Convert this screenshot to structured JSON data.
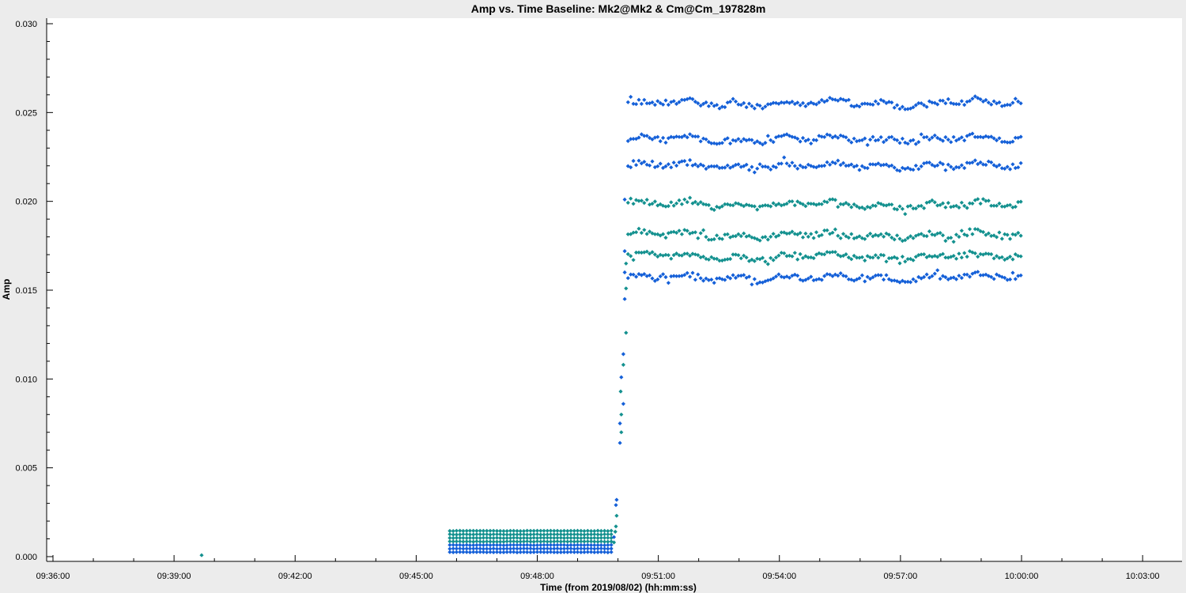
{
  "chart_data": {
    "type": "scatter",
    "title": "Amp vs. Time Baseline: Mk2@Mk2 & Cm@Cm_197828m",
    "xlabel": "Time (from 2019/08/02) (hh:mm:ss)",
    "ylabel": "Amp",
    "x_ticks": [
      "09:36:00",
      "09:39:00",
      "09:42:00",
      "09:45:00",
      "09:48:00",
      "09:51:00",
      "09:54:00",
      "09:57:00",
      "10:00:00",
      "10:03:00"
    ],
    "x_tick_seconds": [
      34560,
      34740,
      34920,
      35100,
      35280,
      35460,
      35640,
      35820,
      36000,
      36180
    ],
    "y_ticks": [
      "0.000",
      "0.005",
      "0.010",
      "0.015",
      "0.020",
      "0.025",
      "0.030"
    ],
    "x_range_seconds": [
      34560,
      36300
    ],
    "ylim": [
      0.0,
      0.03
    ],
    "grid": false,
    "colors": {
      "blue": "#1560d8",
      "teal": "#14918f"
    },
    "isolated_point": {
      "t": 34781,
      "amp": 8e-05,
      "color": "teal"
    },
    "low_block": {
      "t_start": 35150,
      "t_end": 35392,
      "step_seconds": 5,
      "levels": [
        {
          "amp": 0.00025,
          "color": "blue"
        },
        {
          "amp": 0.00045,
          "color": "blue"
        },
        {
          "amp": 0.00065,
          "color": "blue"
        },
        {
          "amp": 0.00085,
          "color": "teal"
        },
        {
          "amp": 0.00105,
          "color": "teal"
        },
        {
          "amp": 0.00125,
          "color": "teal"
        },
        {
          "amp": 0.00145,
          "color": "teal"
        }
      ]
    },
    "ramp_points": [
      {
        "t": 35394,
        "amp": 0.0008,
        "color": "teal"
      },
      {
        "t": 35394,
        "amp": 0.0011,
        "color": "blue"
      },
      {
        "t": 35396,
        "amp": 0.0014,
        "color": "teal"
      },
      {
        "t": 35397,
        "amp": 0.0017,
        "color": "teal"
      },
      {
        "t": 35398,
        "amp": 0.0023,
        "color": "teal"
      },
      {
        "t": 35397,
        "amp": 0.0029,
        "color": "blue"
      },
      {
        "t": 35398,
        "amp": 0.0032,
        "color": "blue"
      },
      {
        "t": 35403,
        "amp": 0.0064,
        "color": "blue"
      },
      {
        "t": 35405,
        "amp": 0.007,
        "color": "teal"
      },
      {
        "t": 35403,
        "amp": 0.0075,
        "color": "blue"
      },
      {
        "t": 35405,
        "amp": 0.008,
        "color": "teal"
      },
      {
        "t": 35408,
        "amp": 0.0086,
        "color": "blue"
      },
      {
        "t": 35404,
        "amp": 0.0093,
        "color": "teal"
      },
      {
        "t": 35405,
        "amp": 0.0101,
        "color": "blue"
      },
      {
        "t": 35408,
        "amp": 0.0108,
        "color": "teal"
      },
      {
        "t": 35408,
        "amp": 0.0114,
        "color": "blue"
      },
      {
        "t": 35412,
        "amp": 0.0126,
        "color": "teal"
      },
      {
        "t": 35410,
        "amp": 0.0145,
        "color": "blue"
      },
      {
        "t": 35412,
        "amp": 0.0151,
        "color": "teal"
      },
      {
        "t": 35410,
        "amp": 0.016,
        "color": "blue"
      },
      {
        "t": 35412,
        "amp": 0.0165,
        "color": "teal"
      },
      {
        "t": 35410,
        "amp": 0.0172,
        "color": "blue"
      },
      {
        "t": 35410,
        "amp": 0.0201,
        "color": "blue"
      }
    ],
    "high_block": {
      "t_start": 35415,
      "t_end": 36000,
      "step_seconds": 4,
      "levels": [
        {
          "amp": 0.0157,
          "color": "blue"
        },
        {
          "amp": 0.0169,
          "color": "teal"
        },
        {
          "amp": 0.0181,
          "color": "teal"
        },
        {
          "amp": 0.0198,
          "color": "teal"
        },
        {
          "amp": 0.022,
          "color": "blue"
        },
        {
          "amp": 0.0235,
          "color": "blue"
        },
        {
          "amp": 0.0255,
          "color": "blue"
        }
      ]
    }
  }
}
